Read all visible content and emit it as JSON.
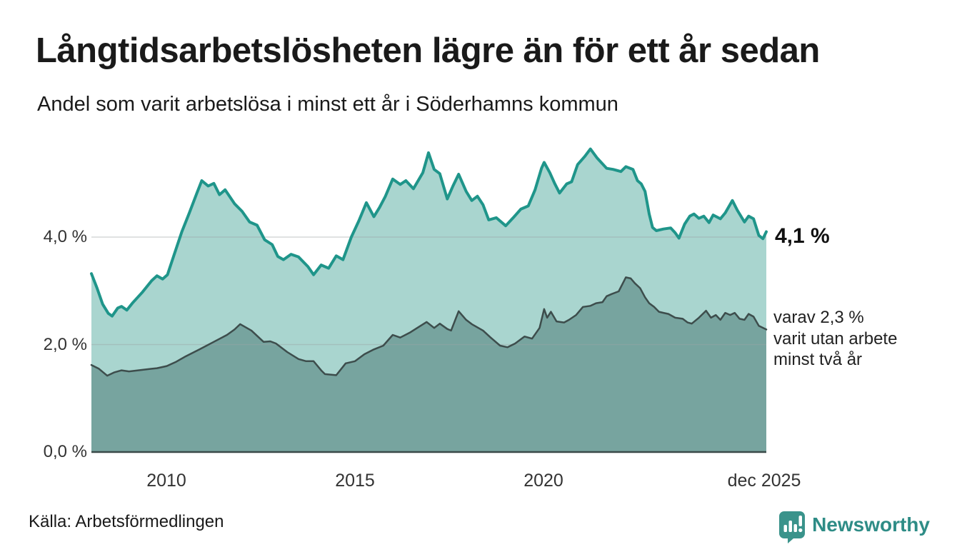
{
  "header": {
    "title": "Långtidsarbetslösheten lägre än för ett år sedan",
    "subtitle": "Andel som varit arbetslösa i minst ett år i Söderhamns kommun"
  },
  "annotations": {
    "latest_total": "4,1 %",
    "two_year_line1": "varav 2,3 %",
    "two_year_line2": "varit utan arbete",
    "two_year_line3": "minst två år"
  },
  "footer": {
    "source": "Källa: Arbetsförmedlingen",
    "brand": "Newsworthy"
  },
  "colors": {
    "accent_teal_line": "#1f958a",
    "light_teal_fill": "#a9d5cf",
    "dark_teal_fill": "#77a49f",
    "dark_slate_line": "#3d4d4c",
    "axis_baseline": "#3a4a49",
    "gridline": "#9aa5a4",
    "brand_teal": "#2e8c86",
    "text_dark": "#1a1a1a"
  },
  "chart_data": {
    "type": "area",
    "title": "Långtidsarbetslösheten lägre än för ett år sedan",
    "subtitle": "Andel som varit arbetslösa i minst ett år i Söderhamns kommun",
    "unit": "%",
    "grid": "horizontal-only",
    "legend": "none (direct labels at line ends)",
    "x_axis": {
      "range": [
        2008.0,
        2025.92
      ],
      "ticks": [
        {
          "label": "2010",
          "t": 2010
        },
        {
          "label": "2015",
          "t": 2015
        },
        {
          "label": "2020",
          "t": 2020
        },
        {
          "label": "dec 2025",
          "t": 2025.92
        }
      ]
    },
    "y_axis": {
      "range": [
        0,
        5.9
      ],
      "grid_values": [
        2.0,
        4.0
      ],
      "ticks": [
        {
          "label": "4,0 %",
          "value": 4.0
        },
        {
          "label": "2,0 %",
          "value": 2.0
        },
        {
          "label": "0,0 %",
          "value": 0.0
        }
      ]
    },
    "latest": {
      "one_year_pct": 4.1,
      "two_year_pct": 2.3,
      "period": "dec 2025"
    },
    "series": [
      {
        "id": "one-year",
        "label": "Arbetslösa minst ett år",
        "line_color": "#1f958a",
        "fill_color": "#a9d5cf",
        "line_width": 4,
        "points": [
          [
            2008.0,
            3.32
          ],
          [
            2008.15,
            3.05
          ],
          [
            2008.3,
            2.75
          ],
          [
            2008.45,
            2.58
          ],
          [
            2008.55,
            2.53
          ],
          [
            2008.7,
            2.68
          ],
          [
            2008.8,
            2.71
          ],
          [
            2008.94,
            2.64
          ],
          [
            2009.1,
            2.78
          ],
          [
            2009.36,
            2.98
          ],
          [
            2009.6,
            3.19
          ],
          [
            2009.74,
            3.28
          ],
          [
            2009.89,
            3.22
          ],
          [
            2010.02,
            3.3
          ],
          [
            2010.2,
            3.68
          ],
          [
            2010.4,
            4.1
          ],
          [
            2010.6,
            4.45
          ],
          [
            2010.8,
            4.82
          ],
          [
            2010.93,
            5.05
          ],
          [
            2011.1,
            4.95
          ],
          [
            2011.25,
            5.0
          ],
          [
            2011.4,
            4.79
          ],
          [
            2011.55,
            4.88
          ],
          [
            2011.8,
            4.62
          ],
          [
            2012.0,
            4.48
          ],
          [
            2012.2,
            4.28
          ],
          [
            2012.4,
            4.22
          ],
          [
            2012.6,
            3.95
          ],
          [
            2012.8,
            3.86
          ],
          [
            2012.95,
            3.64
          ],
          [
            2013.1,
            3.58
          ],
          [
            2013.3,
            3.68
          ],
          [
            2013.5,
            3.63
          ],
          [
            2013.75,
            3.45
          ],
          [
            2013.9,
            3.3
          ],
          [
            2014.1,
            3.48
          ],
          [
            2014.3,
            3.42
          ],
          [
            2014.5,
            3.65
          ],
          [
            2014.68,
            3.58
          ],
          [
            2014.9,
            4.0
          ],
          [
            2015.1,
            4.3
          ],
          [
            2015.3,
            4.64
          ],
          [
            2015.5,
            4.38
          ],
          [
            2015.65,
            4.55
          ],
          [
            2015.8,
            4.75
          ],
          [
            2016.0,
            5.08
          ],
          [
            2016.2,
            4.98
          ],
          [
            2016.35,
            5.05
          ],
          [
            2016.55,
            4.9
          ],
          [
            2016.8,
            5.2
          ],
          [
            2016.95,
            5.57
          ],
          [
            2017.1,
            5.26
          ],
          [
            2017.25,
            5.18
          ],
          [
            2017.45,
            4.71
          ],
          [
            2017.6,
            4.95
          ],
          [
            2017.75,
            5.17
          ],
          [
            2017.95,
            4.85
          ],
          [
            2018.1,
            4.68
          ],
          [
            2018.25,
            4.76
          ],
          [
            2018.4,
            4.6
          ],
          [
            2018.55,
            4.32
          ],
          [
            2018.75,
            4.36
          ],
          [
            2019.0,
            4.21
          ],
          [
            2019.2,
            4.36
          ],
          [
            2019.4,
            4.52
          ],
          [
            2019.6,
            4.58
          ],
          [
            2019.78,
            4.88
          ],
          [
            2019.95,
            5.28
          ],
          [
            2020.02,
            5.39
          ],
          [
            2020.17,
            5.2
          ],
          [
            2020.3,
            5.0
          ],
          [
            2020.43,
            4.82
          ],
          [
            2020.62,
            4.99
          ],
          [
            2020.75,
            5.03
          ],
          [
            2020.91,
            5.35
          ],
          [
            2021.1,
            5.5
          ],
          [
            2021.25,
            5.64
          ],
          [
            2021.43,
            5.47
          ],
          [
            2021.68,
            5.28
          ],
          [
            2021.85,
            5.26
          ],
          [
            2022.06,
            5.22
          ],
          [
            2022.19,
            5.31
          ],
          [
            2022.38,
            5.26
          ],
          [
            2022.5,
            5.05
          ],
          [
            2022.6,
            4.99
          ],
          [
            2022.7,
            4.85
          ],
          [
            2022.81,
            4.43
          ],
          [
            2022.9,
            4.18
          ],
          [
            2023.0,
            4.12
          ],
          [
            2023.19,
            4.15
          ],
          [
            2023.38,
            4.17
          ],
          [
            2023.5,
            4.08
          ],
          [
            2023.6,
            3.98
          ],
          [
            2023.75,
            4.24
          ],
          [
            2023.89,
            4.39
          ],
          [
            2024.0,
            4.43
          ],
          [
            2024.13,
            4.35
          ],
          [
            2024.26,
            4.39
          ],
          [
            2024.4,
            4.27
          ],
          [
            2024.51,
            4.41
          ],
          [
            2024.7,
            4.34
          ],
          [
            2024.83,
            4.45
          ],
          [
            2025.02,
            4.68
          ],
          [
            2025.15,
            4.5
          ],
          [
            2025.34,
            4.28
          ],
          [
            2025.45,
            4.39
          ],
          [
            2025.58,
            4.34
          ],
          [
            2025.72,
            4.03
          ],
          [
            2025.83,
            3.97
          ],
          [
            2025.92,
            4.1
          ]
        ]
      },
      {
        "id": "two-year",
        "label": "Utan arbete minst två år",
        "line_color": "#3d4d4c",
        "fill_color": "#77a49f",
        "line_width": 2.5,
        "points": [
          [
            2008.0,
            1.62
          ],
          [
            2008.2,
            1.55
          ],
          [
            2008.42,
            1.42
          ],
          [
            2008.6,
            1.48
          ],
          [
            2008.8,
            1.52
          ],
          [
            2009.0,
            1.5
          ],
          [
            2009.36,
            1.53
          ],
          [
            2009.6,
            1.55
          ],
          [
            2009.74,
            1.56
          ],
          [
            2010.0,
            1.6
          ],
          [
            2010.25,
            1.68
          ],
          [
            2010.5,
            1.78
          ],
          [
            2010.87,
            1.91
          ],
          [
            2011.25,
            2.05
          ],
          [
            2011.6,
            2.18
          ],
          [
            2011.8,
            2.28
          ],
          [
            2011.95,
            2.38
          ],
          [
            2012.1,
            2.32
          ],
          [
            2012.25,
            2.26
          ],
          [
            2012.57,
            2.05
          ],
          [
            2012.75,
            2.06
          ],
          [
            2012.9,
            2.02
          ],
          [
            2013.2,
            1.86
          ],
          [
            2013.5,
            1.73
          ],
          [
            2013.7,
            1.69
          ],
          [
            2013.9,
            1.69
          ],
          [
            2014.1,
            1.52
          ],
          [
            2014.2,
            1.45
          ],
          [
            2014.5,
            1.43
          ],
          [
            2014.75,
            1.65
          ],
          [
            2015.0,
            1.69
          ],
          [
            2015.25,
            1.82
          ],
          [
            2015.5,
            1.91
          ],
          [
            2015.75,
            1.98
          ],
          [
            2016.0,
            2.18
          ],
          [
            2016.2,
            2.13
          ],
          [
            2016.45,
            2.22
          ],
          [
            2016.65,
            2.31
          ],
          [
            2016.9,
            2.42
          ],
          [
            2017.1,
            2.31
          ],
          [
            2017.25,
            2.39
          ],
          [
            2017.45,
            2.29
          ],
          [
            2017.55,
            2.26
          ],
          [
            2017.75,
            2.62
          ],
          [
            2017.95,
            2.46
          ],
          [
            2018.1,
            2.38
          ],
          [
            2018.4,
            2.26
          ],
          [
            2018.6,
            2.13
          ],
          [
            2018.85,
            1.98
          ],
          [
            2019.05,
            1.95
          ],
          [
            2019.25,
            2.02
          ],
          [
            2019.5,
            2.15
          ],
          [
            2019.7,
            2.11
          ],
          [
            2019.9,
            2.31
          ],
          [
            2020.02,
            2.66
          ],
          [
            2020.1,
            2.5
          ],
          [
            2020.2,
            2.61
          ],
          [
            2020.35,
            2.43
          ],
          [
            2020.55,
            2.41
          ],
          [
            2020.68,
            2.46
          ],
          [
            2020.87,
            2.55
          ],
          [
            2021.05,
            2.7
          ],
          [
            2021.25,
            2.72
          ],
          [
            2021.4,
            2.77
          ],
          [
            2021.57,
            2.79
          ],
          [
            2021.68,
            2.9
          ],
          [
            2021.81,
            2.94
          ],
          [
            2022.0,
            2.99
          ],
          [
            2022.19,
            3.25
          ],
          [
            2022.32,
            3.23
          ],
          [
            2022.43,
            3.14
          ],
          [
            2022.57,
            3.05
          ],
          [
            2022.7,
            2.88
          ],
          [
            2022.81,
            2.77
          ],
          [
            2022.94,
            2.7
          ],
          [
            2023.07,
            2.61
          ],
          [
            2023.19,
            2.59
          ],
          [
            2023.32,
            2.57
          ],
          [
            2023.5,
            2.5
          ],
          [
            2023.7,
            2.48
          ],
          [
            2023.83,
            2.41
          ],
          [
            2023.94,
            2.39
          ],
          [
            2024.13,
            2.5
          ],
          [
            2024.32,
            2.63
          ],
          [
            2024.45,
            2.5
          ],
          [
            2024.58,
            2.55
          ],
          [
            2024.7,
            2.46
          ],
          [
            2024.83,
            2.59
          ],
          [
            2024.96,
            2.55
          ],
          [
            2025.08,
            2.59
          ],
          [
            2025.21,
            2.48
          ],
          [
            2025.34,
            2.46
          ],
          [
            2025.45,
            2.57
          ],
          [
            2025.58,
            2.52
          ],
          [
            2025.72,
            2.35
          ],
          [
            2025.92,
            2.28
          ]
        ]
      }
    ]
  }
}
